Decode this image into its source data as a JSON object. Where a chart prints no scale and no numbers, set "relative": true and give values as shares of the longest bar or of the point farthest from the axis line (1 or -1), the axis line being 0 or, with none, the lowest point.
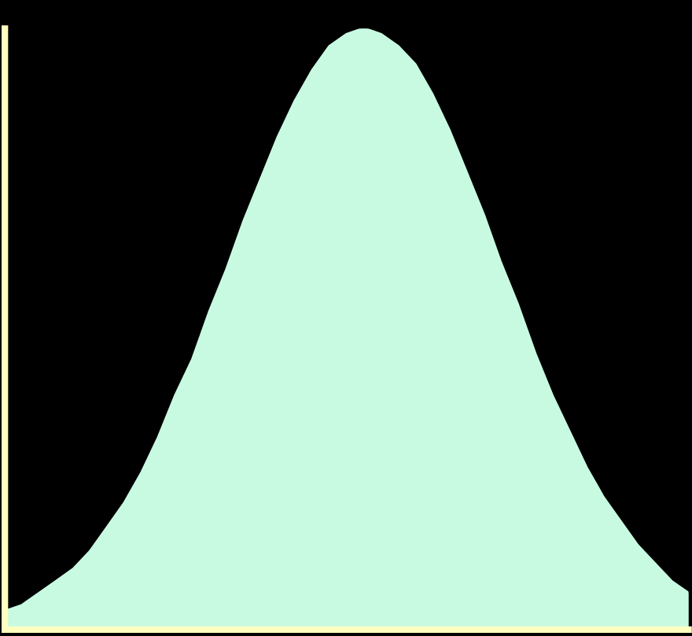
{
  "chart_data": {
    "type": "area",
    "relative": true,
    "grid": false,
    "legend": false,
    "marker": "none",
    "line_style": "solid",
    "categories": [
      null,
      null,
      null,
      null,
      null,
      null,
      null,
      null,
      null,
      null,
      null,
      null,
      null,
      null,
      null,
      null,
      null,
      null,
      null,
      null,
      null,
      null,
      null,
      null,
      null,
      null,
      null,
      null,
      null,
      null,
      null,
      null,
      null,
      null,
      null,
      null,
      null,
      null,
      null,
      null,
      null
    ],
    "series": [
      {
        "color": "#c8fae2",
        "values": [
          0.03,
          0.04,
          0.06,
          0.08,
          0.1,
          0.13,
          0.17,
          0.21,
          0.26,
          0.32,
          0.39,
          0.45,
          0.53,
          0.6,
          0.68,
          0.75,
          0.82,
          0.88,
          0.93,
          0.97,
          0.99,
          1.0,
          0.99,
          0.97,
          0.94,
          0.89,
          0.83,
          0.76,
          0.69,
          0.61,
          0.54,
          0.46,
          0.39,
          0.33,
          0.27,
          0.22,
          0.18,
          0.14,
          0.11,
          0.08,
          0.06
        ]
      }
    ]
  }
}
